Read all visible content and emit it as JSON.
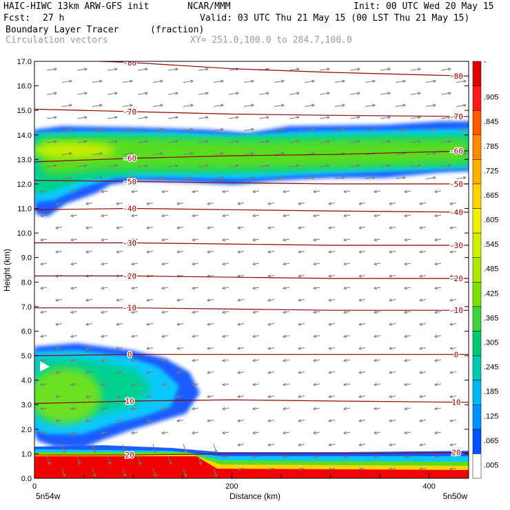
{
  "header": {
    "model": "HAIC-HIWC 13km ARW-GFS init",
    "org": "NCAR/MMM",
    "init": "Init: 00 UTC Wed 20 May 15",
    "fcst_label": "Fcst:",
    "fcst_value": "27 h",
    "valid": "Valid: 03 UTC Thu 21 May 15 (00 LST Thu 21 May 15)",
    "field": "Boundary Layer Tracer",
    "units": "(fraction)",
    "vectors": "Circulation vectors",
    "xy": "XY= 251.0,100.0 to 284.7,100.0"
  },
  "chart_data": {
    "type": "heatmap",
    "xlabel": "Distance (km)",
    "ylabel": "Height (km)",
    "xlim": [
      0,
      440
    ],
    "ylim": [
      0.0,
      17.0
    ],
    "x_ticks": [
      "0",
      "200",
      "400"
    ],
    "y_ticks": [
      "0.0",
      "1.0",
      "2.0",
      "3.0",
      "4.0",
      "5.0",
      "6.0",
      "7.0",
      "8.0",
      "9.0",
      "10.0",
      "11.0",
      "12.0",
      "13.0",
      "14.0",
      "15.0",
      "16.0",
      "17.0"
    ],
    "x_end_labels": {
      "left": "5n54w",
      "right": "5n50w"
    },
    "colorbar": {
      "labels": [
        "-",
        ".905",
        ".845",
        ".785",
        ".725",
        ".665",
        ".605",
        ".545",
        ".485",
        ".425",
        ".365",
        ".305",
        ".245",
        ".185",
        ".125",
        ".065",
        ".005"
      ],
      "colors": [
        "#e00000",
        "#ff1a1a",
        "#ff5a00",
        "#ff8c00",
        "#ffb000",
        "#ffd400",
        "#f2f200",
        "#d0f000",
        "#a8ea00",
        "#7ee000",
        "#40d040",
        "#00c870",
        "#00c8b0",
        "#00b8f0",
        "#0090ff",
        "#0050ff",
        "#ffffff"
      ]
    },
    "isotherms": [
      {
        "label": "-80",
        "x": [
          0,
          100,
          200,
          300,
          440
        ],
        "y": [
          17.1,
          16.95,
          16.7,
          16.55,
          16.4
        ]
      },
      {
        "label": "-70",
        "x": [
          0,
          100,
          200,
          300,
          440
        ],
        "y": [
          15.05,
          14.95,
          14.85,
          14.8,
          14.75
        ]
      },
      {
        "label": "-60",
        "x": [
          0,
          100,
          200,
          300,
          440
        ],
        "y": [
          12.9,
          13.05,
          13.15,
          13.2,
          13.35
        ]
      },
      {
        "label": "-50",
        "x": [
          0,
          100,
          200,
          300,
          440
        ],
        "y": [
          12.15,
          12.1,
          12.05,
          12.0,
          12.0
        ]
      },
      {
        "label": "-40",
        "x": [
          0,
          100,
          200,
          300,
          440
        ],
        "y": [
          10.95,
          11.0,
          10.95,
          10.9,
          10.85
        ]
      },
      {
        "label": "-30",
        "x": [
          0,
          100,
          200,
          300,
          440
        ],
        "y": [
          9.6,
          9.6,
          9.55,
          9.5,
          9.5
        ]
      },
      {
        "label": "-20",
        "x": [
          0,
          100,
          200,
          300,
          440
        ],
        "y": [
          8.25,
          8.25,
          8.2,
          8.15,
          8.15
        ]
      },
      {
        "label": "-10",
        "x": [
          0,
          100,
          200,
          300,
          440
        ],
        "y": [
          6.95,
          6.95,
          6.9,
          6.85,
          6.85
        ]
      },
      {
        "label": "0",
        "x": [
          0,
          100,
          200,
          300,
          440
        ],
        "y": [
          5.0,
          5.05,
          5.05,
          5.05,
          5.05
        ]
      },
      {
        "label": "10",
        "x": [
          0,
          100,
          200,
          300,
          440
        ],
        "y": [
          3.05,
          3.15,
          3.2,
          3.15,
          3.1
        ]
      },
      {
        "label": "20",
        "x": [
          0,
          100,
          200,
          300,
          440
        ],
        "y": [
          0.95,
          0.95,
          1.0,
          1.0,
          1.05
        ]
      }
    ]
  }
}
